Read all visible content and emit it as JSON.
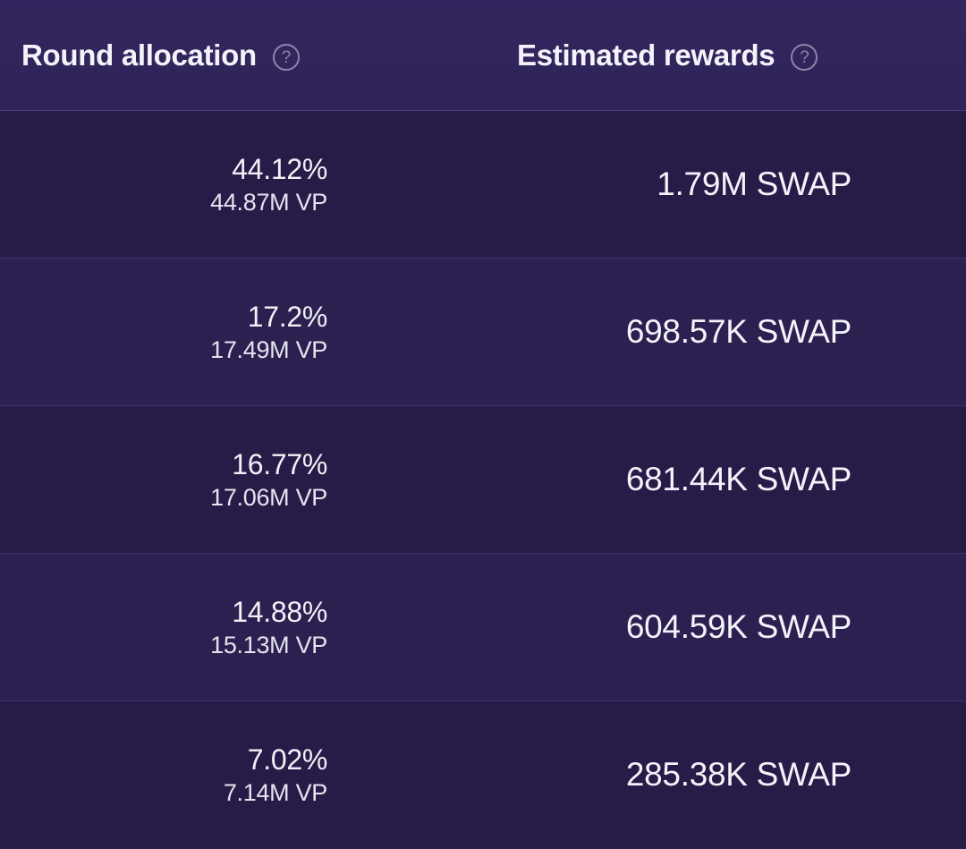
{
  "header": {
    "allocation_label": "Round allocation",
    "rewards_label": "Estimated rewards",
    "help_glyph": "?"
  },
  "rows": [
    {
      "percent": "44.12%",
      "vp": "44.87M VP",
      "reward": "1.79M SWAP"
    },
    {
      "percent": "17.2%",
      "vp": "17.49M VP",
      "reward": "698.57K SWAP"
    },
    {
      "percent": "16.77%",
      "vp": "17.06M VP",
      "reward": "681.44K SWAP"
    },
    {
      "percent": "14.88%",
      "vp": "15.13M VP",
      "reward": "604.59K SWAP"
    },
    {
      "percent": "7.02%",
      "vp": "7.14M VP",
      "reward": "285.38K SWAP"
    }
  ]
}
